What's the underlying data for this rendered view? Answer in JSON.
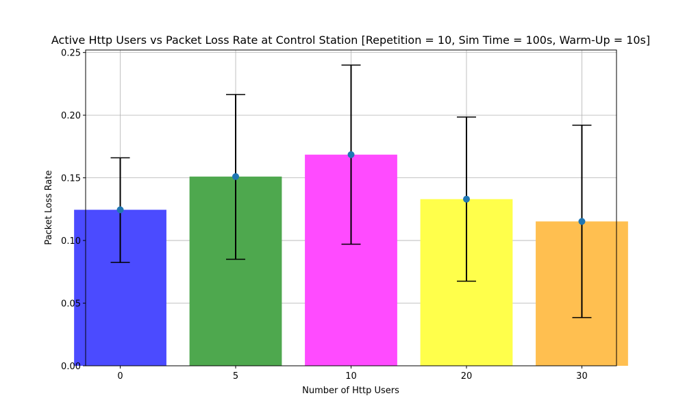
{
  "chart_data": {
    "type": "bar",
    "title": "Active Http Users vs Packet Loss Rate at Control Station [Repetition = 10, Sim Time = 100s, Warm-Up = 10s]",
    "xlabel": "Number of Http Users",
    "ylabel": "Packet Loss Rate",
    "categories": [
      "0",
      "5",
      "10",
      "20",
      "30"
    ],
    "values": [
      0.1245,
      0.151,
      0.1685,
      0.133,
      0.1152
    ],
    "error_low": [
      0.0825,
      0.085,
      0.097,
      0.0675,
      0.0385
    ],
    "error_high": [
      0.166,
      0.2165,
      0.24,
      0.1985,
      0.192
    ],
    "bar_colors": [
      "#4b4bff",
      "#4ea84e",
      "#ff4bff",
      "#ffff4b",
      "#ffbf50"
    ],
    "marker_color": "#1f77b4",
    "ylim": [
      0,
      0.252
    ],
    "yticks": [
      "0.00",
      "0.05",
      "0.10",
      "0.15",
      "0.20",
      "0.25"
    ],
    "grid": true,
    "legend": null
  }
}
